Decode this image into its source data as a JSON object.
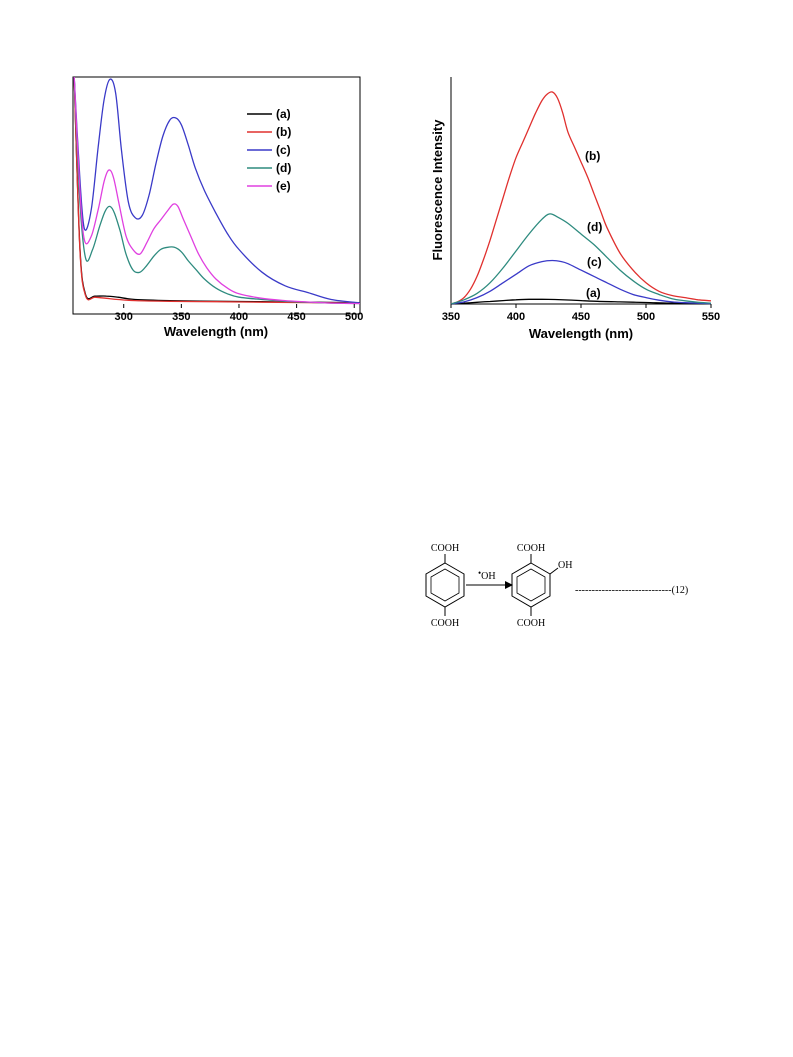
{
  "chart_data": [
    {
      "type": "line",
      "title": "",
      "xlabel": "Wavelength (nm)",
      "ylabel": "",
      "xlim": [
        256,
        505
      ],
      "ylim": [
        0,
        1.0
      ],
      "xticks": [
        "300",
        "350",
        "400",
        "450",
        "500"
      ],
      "xtick_values": [
        300,
        350,
        400,
        450,
        500
      ],
      "legend_position": "top-right",
      "series": [
        {
          "name": "(a)",
          "color": "#000000",
          "x": [
            257,
            262,
            267,
            275,
            285,
            295,
            310,
            340,
            380,
            420,
            460,
            505
          ],
          "y": [
            1.0,
            0.25,
            0.04,
            0.035,
            0.035,
            0.03,
            0.02,
            0.015,
            0.012,
            0.01,
            0.008,
            0.006
          ]
        },
        {
          "name": "(b)",
          "color": "#e0302e",
          "x": [
            257,
            262,
            267,
            275,
            285,
            295,
            310,
            340,
            380,
            420,
            460,
            505
          ],
          "y": [
            1.0,
            0.24,
            0.035,
            0.03,
            0.025,
            0.02,
            0.015,
            0.012,
            0.01,
            0.008,
            0.006,
            0.004
          ]
        },
        {
          "name": "(c)",
          "color": "#3a3ac8",
          "x": [
            257,
            262,
            266,
            272,
            278,
            283,
            288,
            293,
            298,
            304,
            310,
            316,
            322,
            328,
            334,
            340,
            345,
            350,
            356,
            362,
            370,
            380,
            390,
            400,
            420,
            440,
            460,
            480,
            505
          ],
          "y": [
            1.0,
            0.55,
            0.33,
            0.42,
            0.7,
            0.9,
            0.99,
            0.93,
            0.68,
            0.45,
            0.38,
            0.39,
            0.48,
            0.62,
            0.74,
            0.81,
            0.82,
            0.79,
            0.7,
            0.6,
            0.5,
            0.4,
            0.31,
            0.24,
            0.14,
            0.08,
            0.05,
            0.02,
            0.005
          ]
        },
        {
          "name": "(d)",
          "color": "#2e8b7f",
          "x": [
            257,
            262,
            267,
            273,
            279,
            284,
            288,
            292,
            297,
            302,
            308,
            314,
            320,
            326,
            332,
            338,
            344,
            350,
            356,
            363,
            370,
            380,
            390,
            400,
            420,
            440,
            460,
            480,
            505
          ],
          "y": [
            1.0,
            0.45,
            0.2,
            0.24,
            0.34,
            0.41,
            0.43,
            0.4,
            0.32,
            0.22,
            0.15,
            0.14,
            0.17,
            0.21,
            0.24,
            0.25,
            0.25,
            0.23,
            0.19,
            0.15,
            0.11,
            0.07,
            0.045,
            0.03,
            0.02,
            0.012,
            0.008,
            0.004,
            0.002
          ]
        },
        {
          "name": "(e)",
          "color": "#e040e0",
          "x": [
            257,
            262,
            266,
            272,
            278,
            283,
            287,
            291,
            296,
            302,
            308,
            314,
            320,
            326,
            332,
            338,
            343,
            347,
            352,
            358,
            365,
            372,
            380,
            390,
            400,
            420,
            440,
            460,
            480,
            505
          ],
          "y": [
            1.0,
            0.5,
            0.28,
            0.3,
            0.42,
            0.54,
            0.59,
            0.56,
            0.44,
            0.3,
            0.24,
            0.22,
            0.27,
            0.33,
            0.37,
            0.41,
            0.44,
            0.43,
            0.37,
            0.3,
            0.22,
            0.16,
            0.11,
            0.07,
            0.045,
            0.025,
            0.015,
            0.009,
            0.004,
            0.002
          ]
        }
      ]
    },
    {
      "type": "line",
      "title": "",
      "xlabel": "Wavelength (nm)",
      "ylabel": "Fluorescence Intensity",
      "xlim": [
        350,
        550
      ],
      "ylim": [
        0,
        1.0
      ],
      "xticks": [
        "350",
        "400",
        "450",
        "500",
        "550"
      ],
      "xtick_values": [
        350,
        400,
        450,
        500,
        550
      ],
      "series": [
        {
          "name": "(a)",
          "color": "#000000",
          "x": [
            350,
            360,
            370,
            380,
            390,
            400,
            410,
            420,
            430,
            440,
            450,
            460,
            480,
            500,
            520,
            550
          ],
          "y": [
            0.0,
            0.004,
            0.008,
            0.012,
            0.016,
            0.02,
            0.022,
            0.022,
            0.021,
            0.019,
            0.016,
            0.013,
            0.01,
            0.007,
            0.004,
            0.002
          ]
        },
        {
          "name": "(b)",
          "color": "#e0302e",
          "x": [
            350,
            355,
            360,
            365,
            370,
            375,
            380,
            385,
            390,
            395,
            400,
            405,
            410,
            415,
            420,
            424,
            428,
            432,
            436,
            440,
            445,
            450,
            455,
            460,
            465,
            470,
            480,
            490,
            500,
            510,
            520,
            530,
            540,
            550
          ],
          "y": [
            0.0,
            0.01,
            0.03,
            0.07,
            0.13,
            0.21,
            0.3,
            0.4,
            0.5,
            0.6,
            0.69,
            0.76,
            0.83,
            0.9,
            0.96,
            0.99,
            1.0,
            0.97,
            0.9,
            0.81,
            0.74,
            0.67,
            0.6,
            0.52,
            0.44,
            0.36,
            0.24,
            0.16,
            0.1,
            0.06,
            0.04,
            0.03,
            0.02,
            0.015
          ]
        },
        {
          "name": "(c)",
          "color": "#3a3ac8",
          "x": [
            350,
            360,
            370,
            380,
            390,
            400,
            410,
            420,
            428,
            435,
            440,
            450,
            460,
            470,
            480,
            490,
            500,
            510,
            520,
            530,
            540,
            550
          ],
          "y": [
            0.0,
            0.01,
            0.03,
            0.06,
            0.1,
            0.14,
            0.18,
            0.2,
            0.205,
            0.2,
            0.19,
            0.16,
            0.13,
            0.1,
            0.07,
            0.045,
            0.03,
            0.018,
            0.01,
            0.006,
            0.004,
            0.002
          ]
        },
        {
          "name": "(d)",
          "color": "#2e8b7f",
          "x": [
            350,
            360,
            370,
            380,
            390,
            400,
            410,
            420,
            426,
            432,
            440,
            450,
            460,
            470,
            480,
            490,
            500,
            510,
            520,
            530,
            540,
            550
          ],
          "y": [
            0.0,
            0.02,
            0.05,
            0.1,
            0.17,
            0.25,
            0.33,
            0.4,
            0.425,
            0.41,
            0.38,
            0.33,
            0.28,
            0.22,
            0.16,
            0.11,
            0.07,
            0.045,
            0.025,
            0.015,
            0.008,
            0.004
          ]
        }
      ],
      "annotations": [
        "(a)",
        "(b)",
        "(c)",
        "(d)"
      ]
    }
  ],
  "reaction": {
    "reactant_top": "COOH",
    "reactant_bottom": "COOH",
    "reagent_superscript": "•",
    "reagent": "OH",
    "product_top": "COOH",
    "product_side": "OH",
    "product_bottom": "COOH",
    "equation_number": "-----------------------------(12)"
  }
}
